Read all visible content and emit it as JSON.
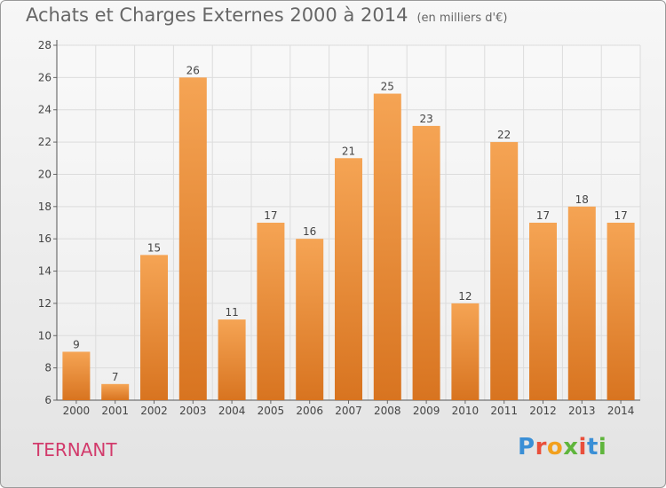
{
  "header": {
    "title": "Achats et Charges Externes 2000 à 2014",
    "unit": "(en milliers d'€)"
  },
  "footer": {
    "commune": "TERNANT",
    "logo": [
      "P",
      "r",
      "o",
      "x",
      "i",
      "t",
      "i"
    ]
  },
  "colors": {
    "bar_top": "#f5a454",
    "bar_bottom": "#d87420",
    "commune": "#d23a6b"
  },
  "chart_data": {
    "type": "bar",
    "title": "Achats et Charges Externes 2000 à 2014",
    "subtitle": "(en milliers d'€)",
    "categories": [
      "2000",
      "2001",
      "2002",
      "2003",
      "2004",
      "2005",
      "2006",
      "2007",
      "2008",
      "2009",
      "2010",
      "2011",
      "2012",
      "2013",
      "2014"
    ],
    "values": [
      9,
      7,
      15,
      26,
      11,
      17,
      16,
      21,
      25,
      23,
      12,
      22,
      17,
      18,
      17
    ],
    "ylim": [
      6,
      28
    ],
    "yticks": [
      6,
      8,
      10,
      12,
      14,
      16,
      18,
      20,
      22,
      24,
      26,
      28
    ],
    "grid": true,
    "data_labels": true
  }
}
